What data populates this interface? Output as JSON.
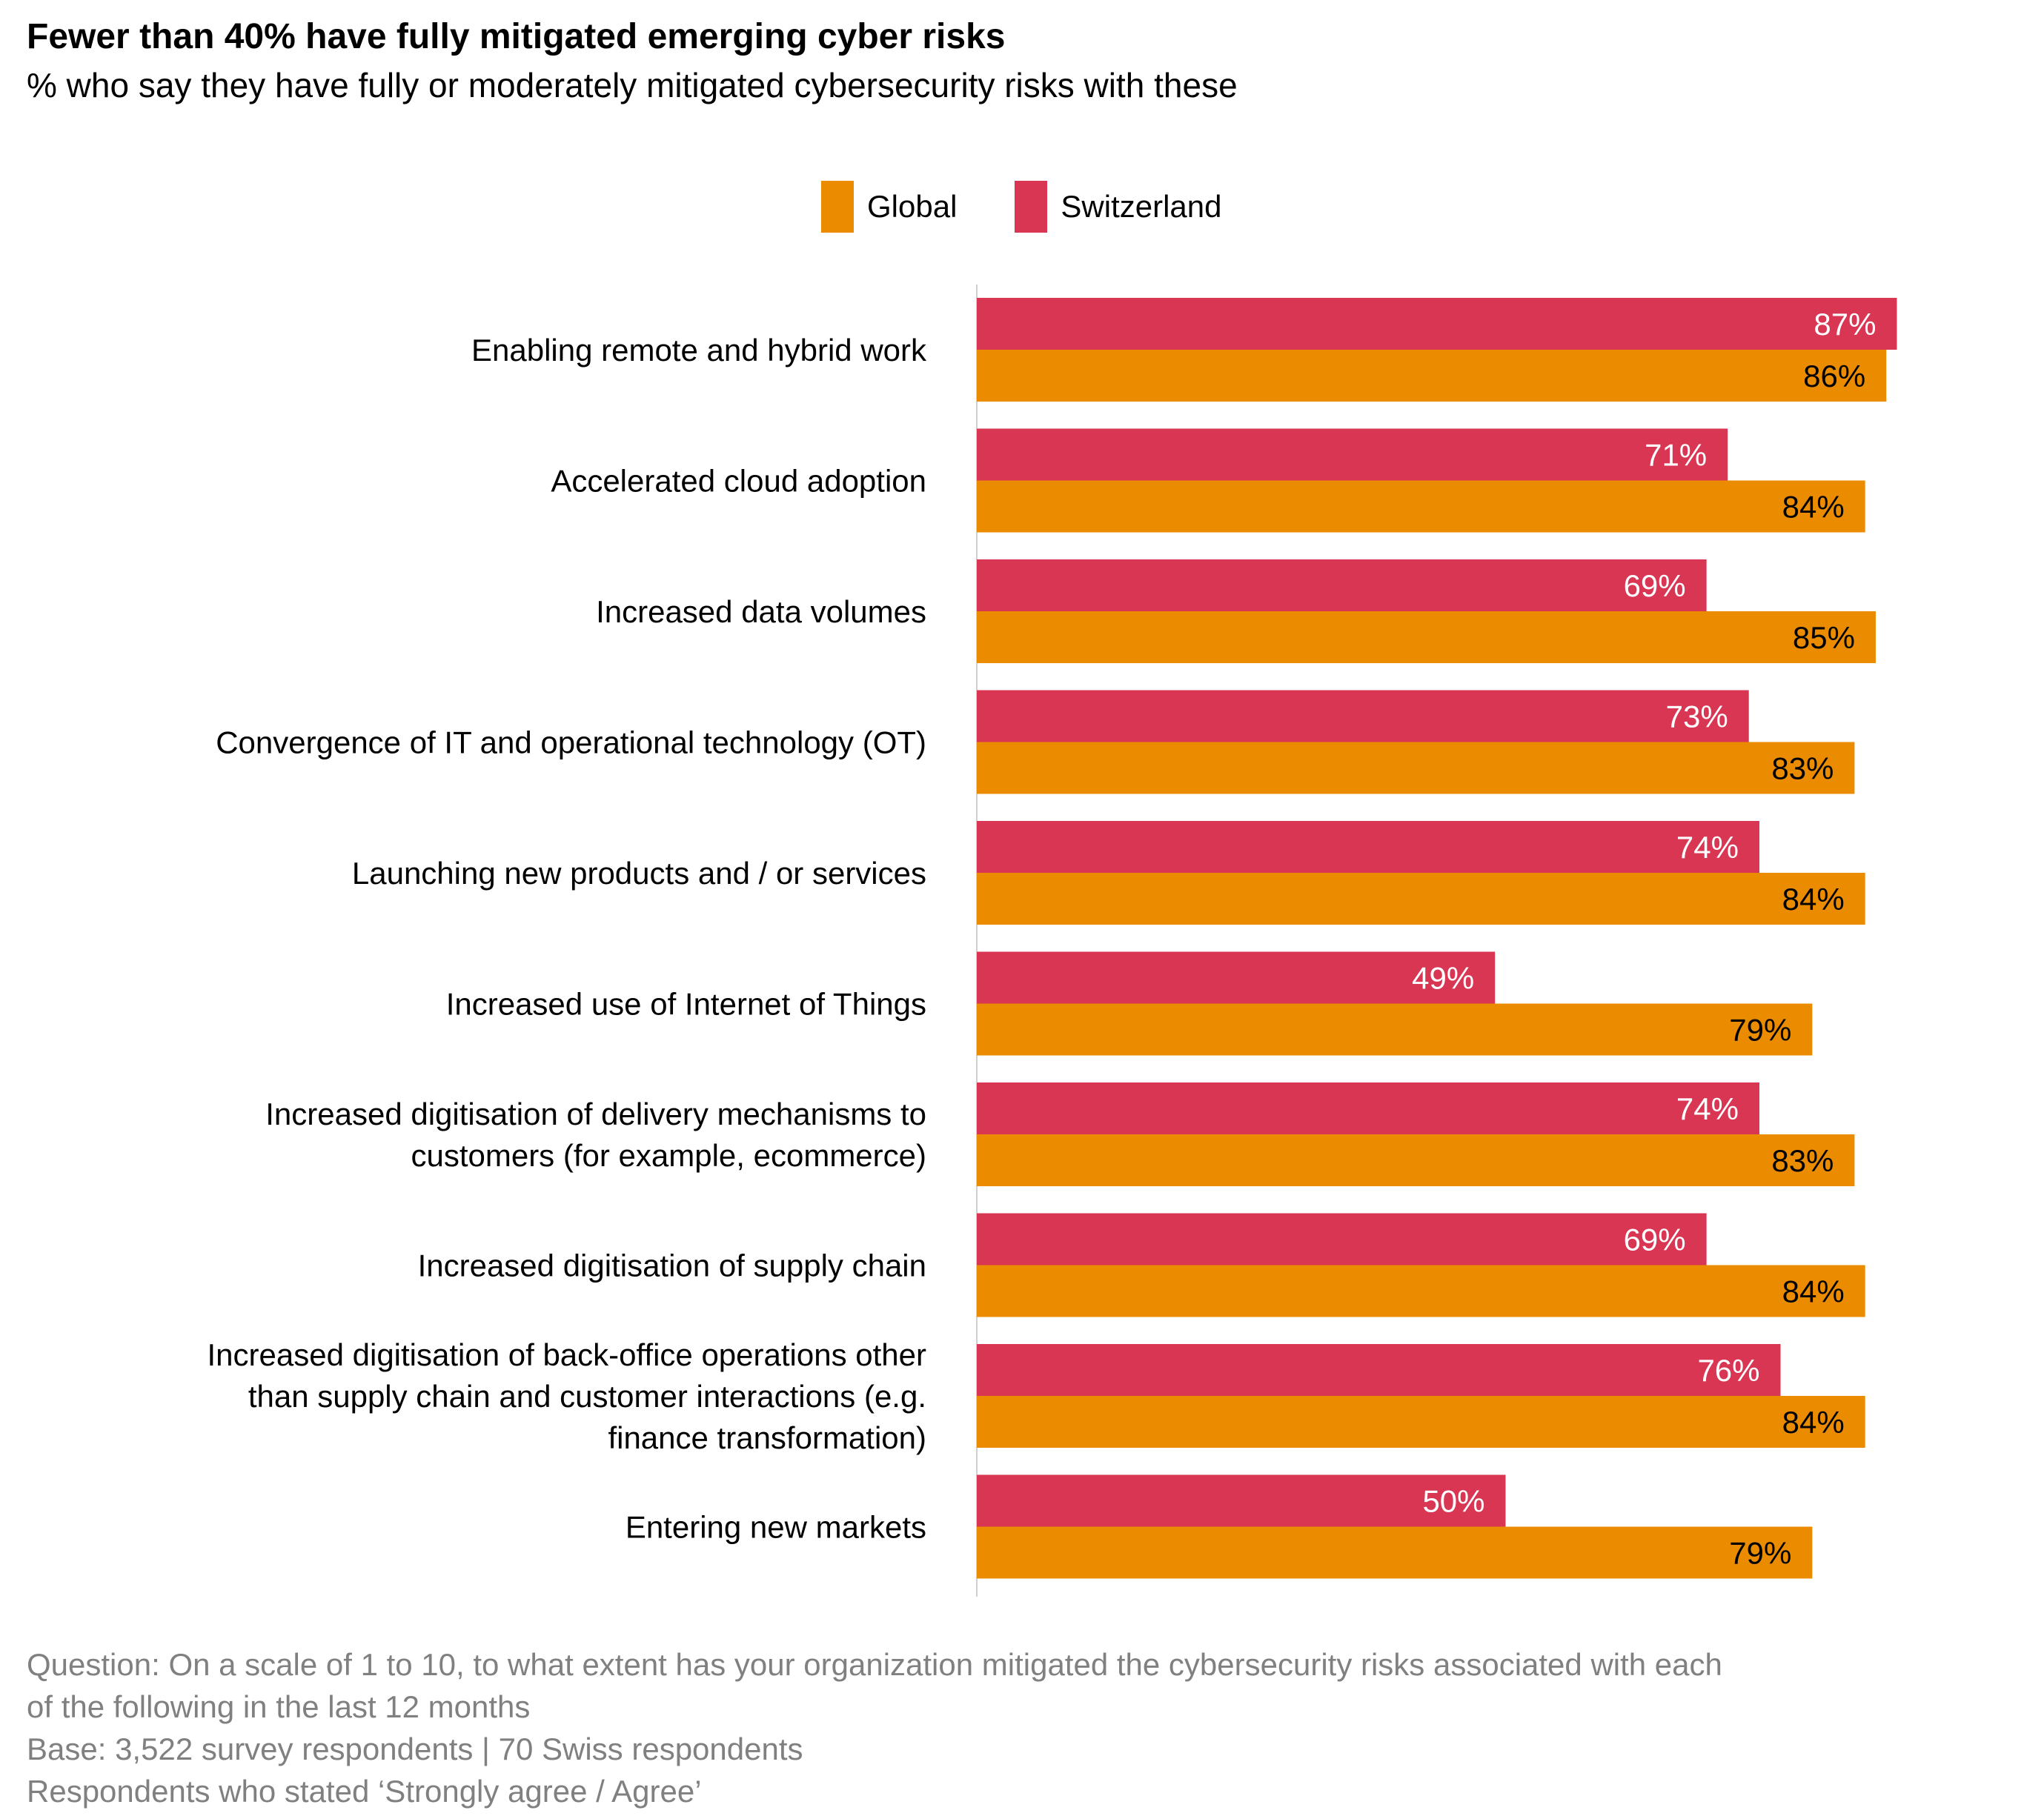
{
  "chart_data": {
    "type": "bar",
    "orientation": "horizontal",
    "title": "Fewer than 40% have fully mitigated emerging cyber risks",
    "subtitle": "% who say they have fully or moderately mitigated cybersecurity risks with these",
    "categories": [
      [
        "Enabling remote and hybrid work"
      ],
      [
        "Accelerated cloud adoption"
      ],
      [
        "Increased data volumes"
      ],
      [
        "Convergence of IT and operational technology (OT)"
      ],
      [
        "Launching new products and / or services"
      ],
      [
        "Increased use of Internet of Things"
      ],
      [
        "Increased digitisation of delivery mechanisms to",
        "customers (for example, ecommerce)"
      ],
      [
        "Increased digitisation of supply chain"
      ],
      [
        "Increased digitisation of back-office operations other",
        "than supply chain and customer interactions (e.g.",
        "finance transformation)"
      ],
      [
        "Entering new markets"
      ]
    ],
    "series": [
      {
        "name": "Switzerland",
        "color": "#d93654",
        "label_color": "#ffffff",
        "values": [
          87,
          71,
          69,
          73,
          74,
          49,
          74,
          69,
          76,
          50
        ],
        "labels": [
          "87%",
          "71%",
          "69%",
          "73%",
          "74%",
          "49%",
          "74%",
          "69%",
          "76%",
          "50%"
        ]
      },
      {
        "name": "Global",
        "color": "#eb8c00",
        "label_color": "#000000",
        "values": [
          86,
          84,
          85,
          83,
          84,
          79,
          83,
          84,
          84,
          79
        ],
        "labels": [
          "86%",
          "84%",
          "85%",
          "83%",
          "84%",
          "79%",
          "83%",
          "84%",
          "84%",
          "79%"
        ]
      }
    ],
    "xlim": [
      0,
      100
    ],
    "grid": false,
    "legend": [
      {
        "name": "Global",
        "color": "#eb8c00"
      },
      {
        "name": "Switzerland",
        "color": "#d93654"
      }
    ],
    "legend_position": "top-center"
  },
  "footer": {
    "question_line1": "Question: On a scale of 1 to 10, to what extent has your organization mitigated the cybersecurity risks associated with each",
    "question_line2": "of the following in the last 12 months",
    "base": "Base: 3,522 survey respondents | 70 Swiss respondents",
    "note": "Respondents who stated ‘Strongly agree / Agree’"
  }
}
